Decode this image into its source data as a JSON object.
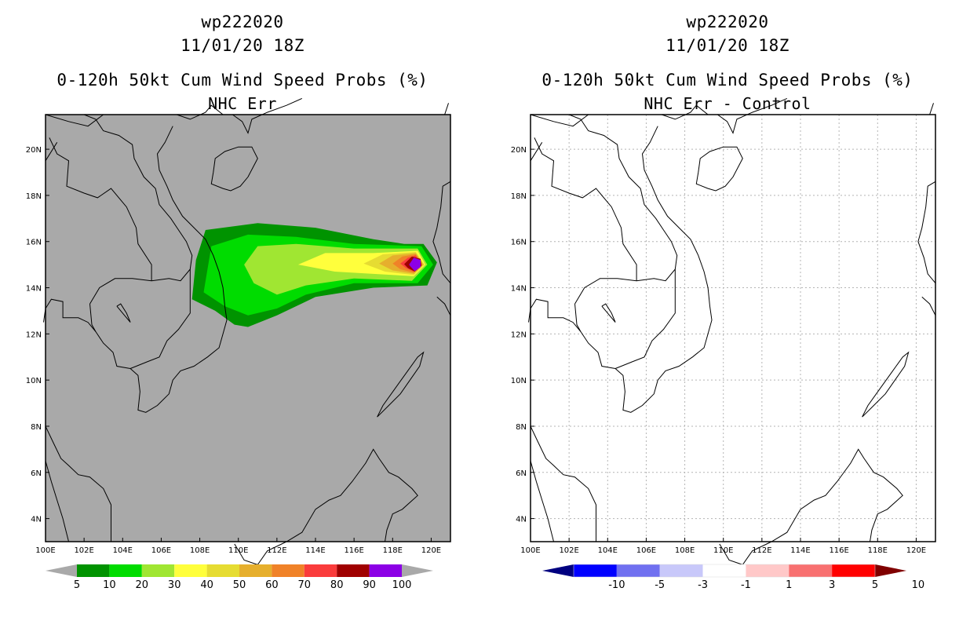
{
  "panels": [
    {
      "storm_id": "wp222020",
      "datetime": "11/01/20 18Z",
      "title": "0-120h 50kt Cum Wind Speed Probs (%)",
      "subtitle": "NHC Err",
      "background": "#a9a9a9",
      "grid": false,
      "colorbar": {
        "labels": [
          "5",
          "10",
          "20",
          "30",
          "40",
          "50",
          "60",
          "70",
          "80",
          "90",
          "100"
        ],
        "colors": [
          "#009300",
          "#00dc00",
          "#a0e632",
          "#ffff3c",
          "#e6dc32",
          "#e6af2d",
          "#f08228",
          "#fa3c3c",
          "#a00000",
          "#8c00e6"
        ],
        "end_low": "#a9a9a9",
        "end_high": "#a9a9a9"
      }
    },
    {
      "storm_id": "wp222020",
      "datetime": "11/01/20 18Z",
      "title": "0-120h 50kt Cum Wind Speed Probs (%)",
      "subtitle": "NHC Err - Control",
      "background": "#ffffff",
      "grid": true,
      "colorbar": {
        "labels": [
          "-10",
          "-5",
          "-3",
          "-1",
          "1",
          "3",
          "5",
          "10"
        ],
        "colors": [
          "#0000ff",
          "#7070f0",
          "#c8c8fa",
          "#ffffff",
          "#ffc8c8",
          "#f87070",
          "#ff0000"
        ],
        "end_low": "#000080",
        "end_high": "#800000"
      }
    }
  ],
  "map": {
    "lon_range": [
      100,
      121
    ],
    "lat_range": [
      3,
      21.5
    ],
    "x_ticks": [
      "100E",
      "102E",
      "104E",
      "106E",
      "108E",
      "110E",
      "112E",
      "114E",
      "116E",
      "118E",
      "120E"
    ],
    "y_ticks": [
      "4N",
      "6N",
      "8N",
      "10N",
      "12N",
      "14N",
      "16N",
      "18N",
      "20N"
    ]
  }
}
